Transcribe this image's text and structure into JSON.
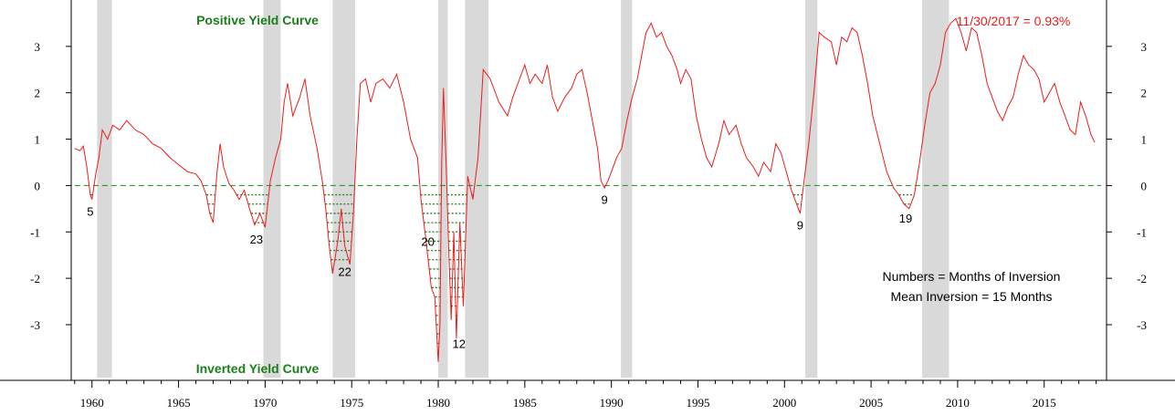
{
  "chart_data": {
    "type": "line",
    "title": "",
    "xlabel": "",
    "ylabel": "",
    "xlim": [
      1958.8,
      2018.6
    ],
    "ylim": [
      -4.2,
      4.0
    ],
    "x_ticks": [
      "1960",
      "1965",
      "1970",
      "1975",
      "1980",
      "1985",
      "1990",
      "1995",
      "2000",
      "2005",
      "2010",
      "2015"
    ],
    "y_ticks": [
      "3",
      "2",
      "1",
      "0",
      "-1",
      "-2",
      "-3"
    ],
    "grid": false,
    "colors": {
      "line": "#ee1c1c",
      "zero_line": "#1a8a1a",
      "recession": "#d9d9d9",
      "inversion_dots": "#1a7f1a"
    },
    "recessions": [
      [
        1960.3,
        1961.15
      ],
      [
        1969.9,
        1970.9
      ],
      [
        1973.9,
        1975.2
      ],
      [
        1980.0,
        1980.55
      ],
      [
        1981.55,
        1982.9
      ],
      [
        1990.55,
        1991.2
      ],
      [
        2001.2,
        2001.9
      ],
      [
        2007.95,
        2009.5
      ]
    ],
    "series": [
      {
        "values": [
          [
            1959.0,
            0.8
          ],
          [
            1959.3,
            0.75
          ],
          [
            1959.5,
            0.85
          ],
          [
            1959.7,
            0.4
          ],
          [
            1959.9,
            -0.2
          ],
          [
            1960.0,
            -0.3
          ],
          [
            1960.2,
            0.2
          ],
          [
            1960.4,
            0.6
          ],
          [
            1960.6,
            1.2
          ],
          [
            1960.9,
            1.0
          ],
          [
            1961.2,
            1.3
          ],
          [
            1961.6,
            1.2
          ],
          [
            1962.0,
            1.4
          ],
          [
            1962.5,
            1.2
          ],
          [
            1963.0,
            1.1
          ],
          [
            1963.5,
            0.9
          ],
          [
            1964.0,
            0.8
          ],
          [
            1964.5,
            0.6
          ],
          [
            1965.0,
            0.45
          ],
          [
            1965.5,
            0.3
          ],
          [
            1966.0,
            0.25
          ],
          [
            1966.3,
            0.1
          ],
          [
            1966.6,
            -0.2
          ],
          [
            1966.8,
            -0.6
          ],
          [
            1967.0,
            -0.8
          ],
          [
            1967.2,
            0.2
          ],
          [
            1967.4,
            0.9
          ],
          [
            1967.6,
            0.4
          ],
          [
            1967.9,
            0.05
          ],
          [
            1968.2,
            -0.1
          ],
          [
            1968.5,
            -0.3
          ],
          [
            1968.8,
            -0.1
          ],
          [
            1969.1,
            -0.5
          ],
          [
            1969.4,
            -0.85
          ],
          [
            1969.7,
            -0.6
          ],
          [
            1970.0,
            -0.9
          ],
          [
            1970.3,
            0.1
          ],
          [
            1970.6,
            0.6
          ],
          [
            1970.9,
            1.0
          ],
          [
            1971.1,
            1.8
          ],
          [
            1971.3,
            2.2
          ],
          [
            1971.6,
            1.5
          ],
          [
            1972.0,
            1.9
          ],
          [
            1972.3,
            2.3
          ],
          [
            1972.6,
            1.5
          ],
          [
            1973.0,
            0.8
          ],
          [
            1973.3,
            0.1
          ],
          [
            1973.5,
            -0.5
          ],
          [
            1973.7,
            -1.3
          ],
          [
            1973.9,
            -1.9
          ],
          [
            1974.2,
            -1.2
          ],
          [
            1974.4,
            -0.5
          ],
          [
            1974.6,
            -1.3
          ],
          [
            1974.9,
            -1.7
          ],
          [
            1975.1,
            -0.6
          ],
          [
            1975.3,
            1.0
          ],
          [
            1975.5,
            2.2
          ],
          [
            1975.8,
            2.3
          ],
          [
            1976.1,
            1.8
          ],
          [
            1976.4,
            2.2
          ],
          [
            1976.8,
            2.3
          ],
          [
            1977.2,
            2.1
          ],
          [
            1977.6,
            2.4
          ],
          [
            1978.0,
            1.8
          ],
          [
            1978.4,
            1.0
          ],
          [
            1978.8,
            0.6
          ],
          [
            1979.0,
            -0.3
          ],
          [
            1979.3,
            -1.2
          ],
          [
            1979.6,
            -2.2
          ],
          [
            1979.8,
            -2.4
          ],
          [
            1980.0,
            -3.8
          ],
          [
            1980.1,
            -3.0
          ],
          [
            1980.2,
            0.5
          ],
          [
            1980.3,
            2.1
          ],
          [
            1980.45,
            0.5
          ],
          [
            1980.6,
            -1.3
          ],
          [
            1980.75,
            -2.9
          ],
          [
            1980.9,
            -1.0
          ],
          [
            1981.05,
            -3.3
          ],
          [
            1981.25,
            -0.8
          ],
          [
            1981.45,
            -2.6
          ],
          [
            1981.7,
            0.2
          ],
          [
            1982.0,
            -0.3
          ],
          [
            1982.3,
            0.6
          ],
          [
            1982.6,
            2.5
          ],
          [
            1983.0,
            2.3
          ],
          [
            1983.5,
            1.8
          ],
          [
            1984.0,
            1.5
          ],
          [
            1984.3,
            1.9
          ],
          [
            1984.6,
            2.2
          ],
          [
            1985.0,
            2.6
          ],
          [
            1985.3,
            2.2
          ],
          [
            1985.6,
            2.4
          ],
          [
            1986.0,
            2.2
          ],
          [
            1986.3,
            2.6
          ],
          [
            1986.6,
            1.9
          ],
          [
            1986.9,
            1.6
          ],
          [
            1987.3,
            1.9
          ],
          [
            1987.7,
            2.1
          ],
          [
            1988.0,
            2.4
          ],
          [
            1988.3,
            2.5
          ],
          [
            1988.6,
            2.0
          ],
          [
            1988.9,
            1.4
          ],
          [
            1989.2,
            0.8
          ],
          [
            1989.4,
            0.1
          ],
          [
            1989.6,
            -0.05
          ],
          [
            1989.8,
            0.1
          ],
          [
            1990.0,
            0.3
          ],
          [
            1990.3,
            0.6
          ],
          [
            1990.6,
            0.8
          ],
          [
            1990.9,
            1.4
          ],
          [
            1991.2,
            1.9
          ],
          [
            1991.5,
            2.3
          ],
          [
            1991.8,
            2.9
          ],
          [
            1992.0,
            3.3
          ],
          [
            1992.3,
            3.5
          ],
          [
            1992.6,
            3.2
          ],
          [
            1992.9,
            3.3
          ],
          [
            1993.2,
            3.0
          ],
          [
            1993.5,
            2.8
          ],
          [
            1993.8,
            2.5
          ],
          [
            1994.0,
            2.2
          ],
          [
            1994.3,
            2.5
          ],
          [
            1994.6,
            2.3
          ],
          [
            1994.9,
            1.5
          ],
          [
            1995.2,
            1.0
          ],
          [
            1995.5,
            0.6
          ],
          [
            1995.8,
            0.4
          ],
          [
            1996.2,
            0.9
          ],
          [
            1996.5,
            1.4
          ],
          [
            1996.8,
            1.1
          ],
          [
            1997.2,
            1.3
          ],
          [
            1997.5,
            0.9
          ],
          [
            1997.8,
            0.6
          ],
          [
            1998.2,
            0.4
          ],
          [
            1998.5,
            0.2
          ],
          [
            1998.8,
            0.5
          ],
          [
            1999.2,
            0.3
          ],
          [
            1999.5,
            0.9
          ],
          [
            1999.8,
            0.7
          ],
          [
            2000.1,
            0.3
          ],
          [
            2000.4,
            -0.1
          ],
          [
            2000.6,
            -0.3
          ],
          [
            2000.9,
            -0.6
          ],
          [
            2001.1,
            0.0
          ],
          [
            2001.4,
            0.9
          ],
          [
            2001.7,
            2.0
          ],
          [
            2002.0,
            3.3
          ],
          [
            2002.3,
            3.2
          ],
          [
            2002.7,
            3.1
          ],
          [
            2003.0,
            2.6
          ],
          [
            2003.3,
            3.2
          ],
          [
            2003.6,
            3.1
          ],
          [
            2003.9,
            3.4
          ],
          [
            2004.2,
            3.3
          ],
          [
            2004.5,
            2.8
          ],
          [
            2004.8,
            2.2
          ],
          [
            2005.1,
            1.5
          ],
          [
            2005.5,
            0.9
          ],
          [
            2005.9,
            0.3
          ],
          [
            2006.3,
            -0.05
          ],
          [
            2006.6,
            -0.2
          ],
          [
            2006.9,
            -0.4
          ],
          [
            2007.2,
            -0.5
          ],
          [
            2007.5,
            -0.2
          ],
          [
            2007.8,
            0.5
          ],
          [
            2008.1,
            1.3
          ],
          [
            2008.4,
            2.0
          ],
          [
            2008.7,
            2.2
          ],
          [
            2009.0,
            2.6
          ],
          [
            2009.3,
            3.3
          ],
          [
            2009.6,
            3.5
          ],
          [
            2009.9,
            3.6
          ],
          [
            2010.2,
            3.3
          ],
          [
            2010.5,
            2.9
          ],
          [
            2010.8,
            3.4
          ],
          [
            2011.1,
            3.3
          ],
          [
            2011.4,
            2.8
          ],
          [
            2011.7,
            2.2
          ],
          [
            2012.0,
            1.9
          ],
          [
            2012.3,
            1.6
          ],
          [
            2012.6,
            1.4
          ],
          [
            2012.9,
            1.7
          ],
          [
            2013.2,
            1.9
          ],
          [
            2013.5,
            2.4
          ],
          [
            2013.8,
            2.8
          ],
          [
            2014.1,
            2.6
          ],
          [
            2014.4,
            2.5
          ],
          [
            2014.7,
            2.3
          ],
          [
            2015.0,
            1.8
          ],
          [
            2015.3,
            2.0
          ],
          [
            2015.6,
            2.2
          ],
          [
            2015.9,
            1.8
          ],
          [
            2016.2,
            1.5
          ],
          [
            2016.5,
            1.2
          ],
          [
            2016.8,
            1.1
          ],
          [
            2017.1,
            1.8
          ],
          [
            2017.4,
            1.5
          ],
          [
            2017.7,
            1.1
          ],
          [
            2017.92,
            0.93
          ]
        ]
      }
    ],
    "inversion_labels": [
      {
        "x": 1959.9,
        "y": -0.55,
        "text": "5"
      },
      {
        "x": 1969.5,
        "y": -1.15,
        "text": "23"
      },
      {
        "x": 1974.6,
        "y": -1.85,
        "text": "22"
      },
      {
        "x": 1979.4,
        "y": -1.2,
        "text": "20"
      },
      {
        "x": 1981.2,
        "y": -3.4,
        "text": "12"
      },
      {
        "x": 1989.6,
        "y": -0.3,
        "text": "9"
      },
      {
        "x": 2000.9,
        "y": -0.85,
        "text": "9"
      },
      {
        "x": 2007.0,
        "y": -0.7,
        "text": "19"
      }
    ],
    "annotations": {
      "top_label": "Positive Yield Curve",
      "bottom_label": "Inverted Yield Curve",
      "latest_value": "11/30/2017 = 0.93%",
      "note_line1": "Numbers = Months of Inversion",
      "note_line2": "Mean Inversion = 15 Months"
    }
  }
}
